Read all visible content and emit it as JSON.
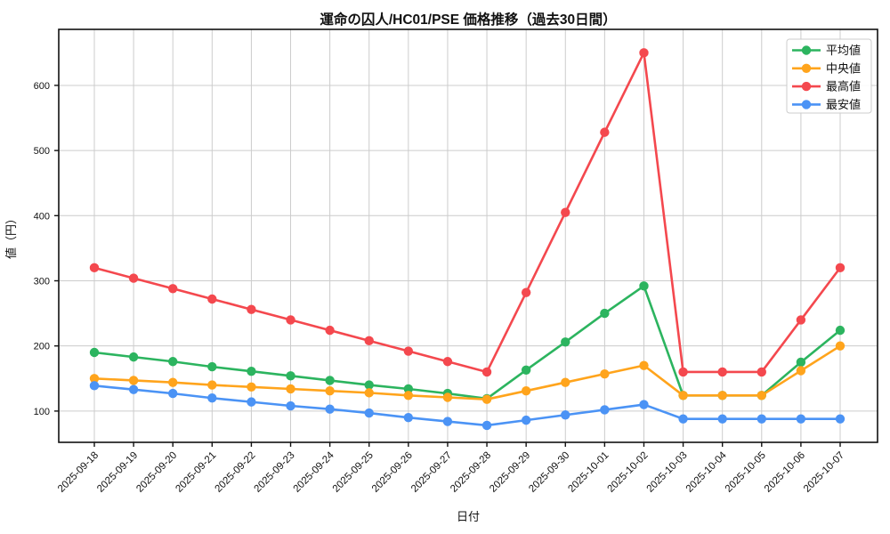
{
  "title": "運命の囚人/HC01/PSE 価格推移（過去30日間）",
  "chart_data": {
    "type": "line",
    "title": "運命の囚人/HC01/PSE 価格推移（過去30日間）",
    "xlabel": "日付",
    "ylabel": "値（円）",
    "grid": true,
    "legend_position": "top-right",
    "ylim": [
      52,
      686
    ],
    "yticks": [
      100,
      200,
      300,
      400,
      500,
      600
    ],
    "x": [
      "2025-09-18",
      "2025-09-19",
      "2025-09-20",
      "2025-09-21",
      "2025-09-22",
      "2025-09-23",
      "2025-09-24",
      "2025-09-25",
      "2025-09-26",
      "2025-09-27",
      "2025-09-28",
      "2025-09-29",
      "2025-09-30",
      "2025-10-01",
      "2025-10-02",
      "2025-10-03",
      "2025-10-04",
      "2025-10-05",
      "2025-10-06",
      "2025-10-07"
    ],
    "series": [
      {
        "key": "average",
        "name": "平均値",
        "color": "#2cb45f",
        "values": [
          190,
          183,
          176,
          168,
          161,
          154,
          147,
          140,
          134,
          127,
          119,
          163,
          206,
          250,
          292,
          124,
          124,
          124,
          175,
          224
        ]
      },
      {
        "key": "median",
        "name": "中央値",
        "color": "#ffa41c",
        "values": [
          150,
          147,
          144,
          140,
          137,
          134,
          131,
          128,
          124,
          121,
          118,
          131,
          144,
          157,
          170,
          124,
          124,
          124,
          162,
          200
        ]
      },
      {
        "key": "highest",
        "name": "最高値",
        "color": "#f4484e",
        "values": [
          320,
          304,
          288,
          272,
          256,
          240,
          224,
          208,
          192,
          176,
          160,
          282,
          405,
          528,
          650,
          160,
          160,
          160,
          240,
          320
        ]
      },
      {
        "key": "lowest",
        "name": "最安値",
        "color": "#4b93f5",
        "values": [
          139,
          133,
          127,
          120,
          114,
          108,
          103,
          97,
          90,
          84,
          78,
          86,
          94,
          102,
          110,
          88,
          88,
          88,
          88,
          88
        ]
      }
    ],
    "colors": {
      "grid": "#cccccc",
      "spine": "#111111",
      "legend_border": "#cccccc",
      "legend_bg": "#ffffff"
    }
  }
}
